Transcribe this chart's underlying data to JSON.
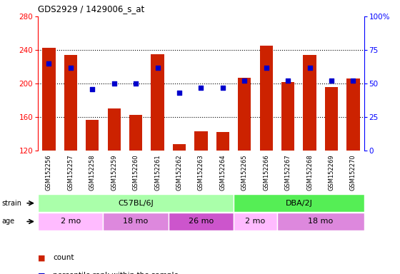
{
  "title": "GDS2929 / 1429006_s_at",
  "samples": [
    "GSM152256",
    "GSM152257",
    "GSM152258",
    "GSM152259",
    "GSM152260",
    "GSM152261",
    "GSM152262",
    "GSM152263",
    "GSM152264",
    "GSM152265",
    "GSM152266",
    "GSM152267",
    "GSM152268",
    "GSM152269",
    "GSM152270"
  ],
  "counts": [
    243,
    234,
    157,
    170,
    163,
    235,
    128,
    143,
    142,
    207,
    245,
    202,
    234,
    196,
    206
  ],
  "percentile_ranks": [
    65,
    62,
    46,
    50,
    50,
    62,
    43,
    47,
    47,
    52,
    62,
    52,
    62,
    52,
    52
  ],
  "ymin": 120,
  "ymax": 280,
  "y2min": 0,
  "y2max": 100,
  "yticks": [
    120,
    160,
    200,
    240,
    280
  ],
  "y2ticks": [
    0,
    25,
    50,
    75,
    100
  ],
  "bar_color": "#cc2200",
  "dot_color": "#0000cc",
  "bar_bottom": 120,
  "strain_groups": [
    {
      "label": "C57BL/6J",
      "start": 0,
      "end": 9,
      "color": "#aaffaa"
    },
    {
      "label": "DBA/2J",
      "start": 9,
      "end": 15,
      "color": "#55ee55"
    }
  ],
  "age_groups": [
    {
      "label": "2 mo",
      "start": 0,
      "end": 3,
      "color": "#ffbbff"
    },
    {
      "label": "18 mo",
      "start": 3,
      "end": 6,
      "color": "#dd88dd"
    },
    {
      "label": "26 mo",
      "start": 6,
      "end": 9,
      "color": "#cc55cc"
    },
    {
      "label": "2 mo",
      "start": 9,
      "end": 11,
      "color": "#ffbbff"
    },
    {
      "label": "18 mo",
      "start": 11,
      "end": 15,
      "color": "#dd88dd"
    }
  ],
  "label_bg_color": "#dddddd",
  "legend_count_color": "#cc2200",
  "legend_dot_color": "#0000cc"
}
